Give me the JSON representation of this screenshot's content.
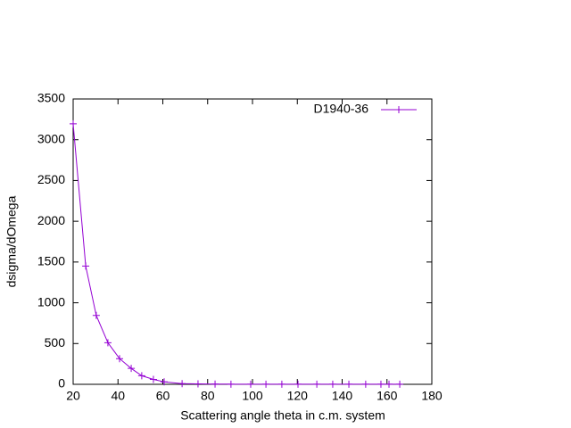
{
  "chart_data": {
    "type": "line",
    "x_label": "Scattering angle theta in c.m. system",
    "y_label": "dsigma/dOmega",
    "series": [
      {
        "name": "D1940-36",
        "color": "#9400d3",
        "x": [
          20,
          25.6,
          30.3,
          35.5,
          40.7,
          45.9,
          50.6,
          55.8,
          60.6,
          68.6,
          75.7,
          83.3,
          90.4,
          99.2,
          106,
          113.1,
          120.3,
          128.7,
          135.8,
          143,
          150.5,
          157.3,
          160.9,
          165.7
        ],
        "values": [
          3195,
          1450,
          845,
          510,
          315,
          195,
          105,
          60,
          30,
          8,
          5,
          3,
          2,
          2,
          1,
          1,
          1,
          1,
          1,
          1,
          1,
          1,
          1,
          1
        ]
      }
    ],
    "xlim": [
      20,
      180
    ],
    "xticks": [
      20,
      40,
      60,
      80,
      100,
      120,
      140,
      160,
      180
    ],
    "ylim": [
      0,
      3500
    ],
    "yticks": [
      0,
      500,
      1000,
      1500,
      2000,
      2500,
      3000,
      3500
    ],
    "legend": "top-right"
  }
}
